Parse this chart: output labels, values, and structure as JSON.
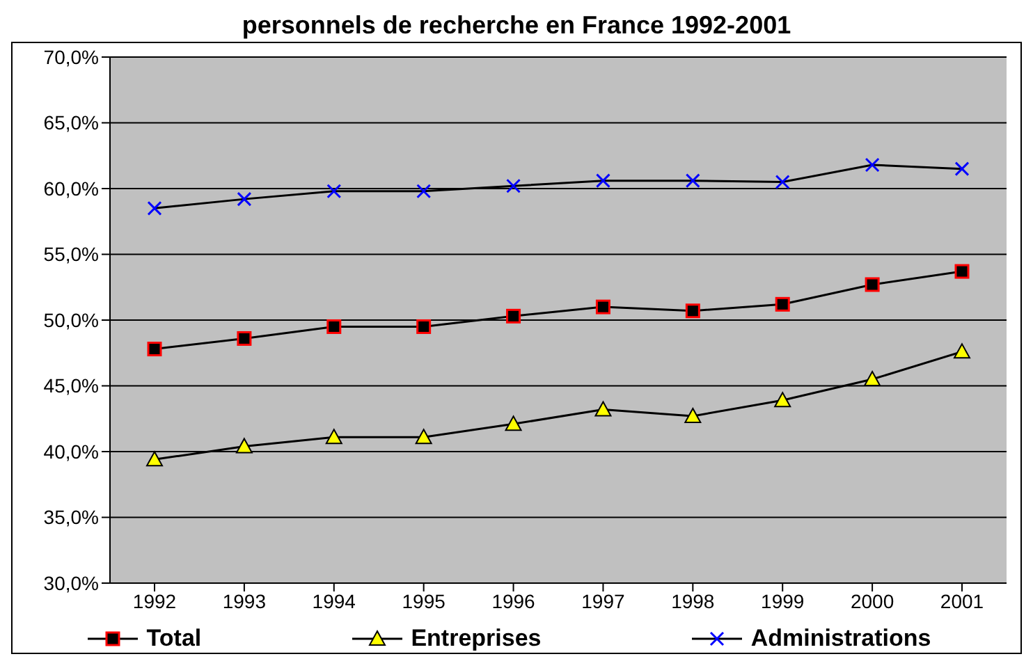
{
  "chart_data": {
    "type": "line",
    "title": "personnels de recherche en France 1992-2001",
    "categories": [
      "1992",
      "1993",
      "1994",
      "1995",
      "1996",
      "1997",
      "1998",
      "1999",
      "2000",
      "2001"
    ],
    "series": [
      {
        "name": "Total",
        "color": "#ff0000",
        "marker": "square",
        "values": [
          47.8,
          48.6,
          49.5,
          49.5,
          50.3,
          51.0,
          50.7,
          51.2,
          52.7,
          53.7
        ]
      },
      {
        "name": "Entreprises",
        "color": "#ffff00",
        "marker": "triangle",
        "values": [
          39.4,
          40.4,
          41.1,
          41.1,
          42.1,
          43.2,
          42.7,
          43.9,
          45.5,
          47.6
        ]
      },
      {
        "name": "Administrations",
        "color": "#0000ff",
        "marker": "cross",
        "values": [
          58.5,
          59.2,
          59.8,
          59.8,
          60.2,
          60.6,
          60.6,
          60.5,
          61.8,
          61.5
        ]
      }
    ],
    "ylim": [
      30,
      70
    ],
    "yticks": [
      {
        "value": 30,
        "label": "30,0%"
      },
      {
        "value": 35,
        "label": "35,0%"
      },
      {
        "value": 40,
        "label": "40,0%"
      },
      {
        "value": 45,
        "label": "45,0%"
      },
      {
        "value": 50,
        "label": "50,0%"
      },
      {
        "value": 55,
        "label": "55,0%"
      },
      {
        "value": 60,
        "label": "60,0%"
      },
      {
        "value": 65,
        "label": "65,0%"
      },
      {
        "value": 70,
        "label": "70,0%"
      }
    ],
    "grid": "y",
    "legend": "bottom"
  }
}
